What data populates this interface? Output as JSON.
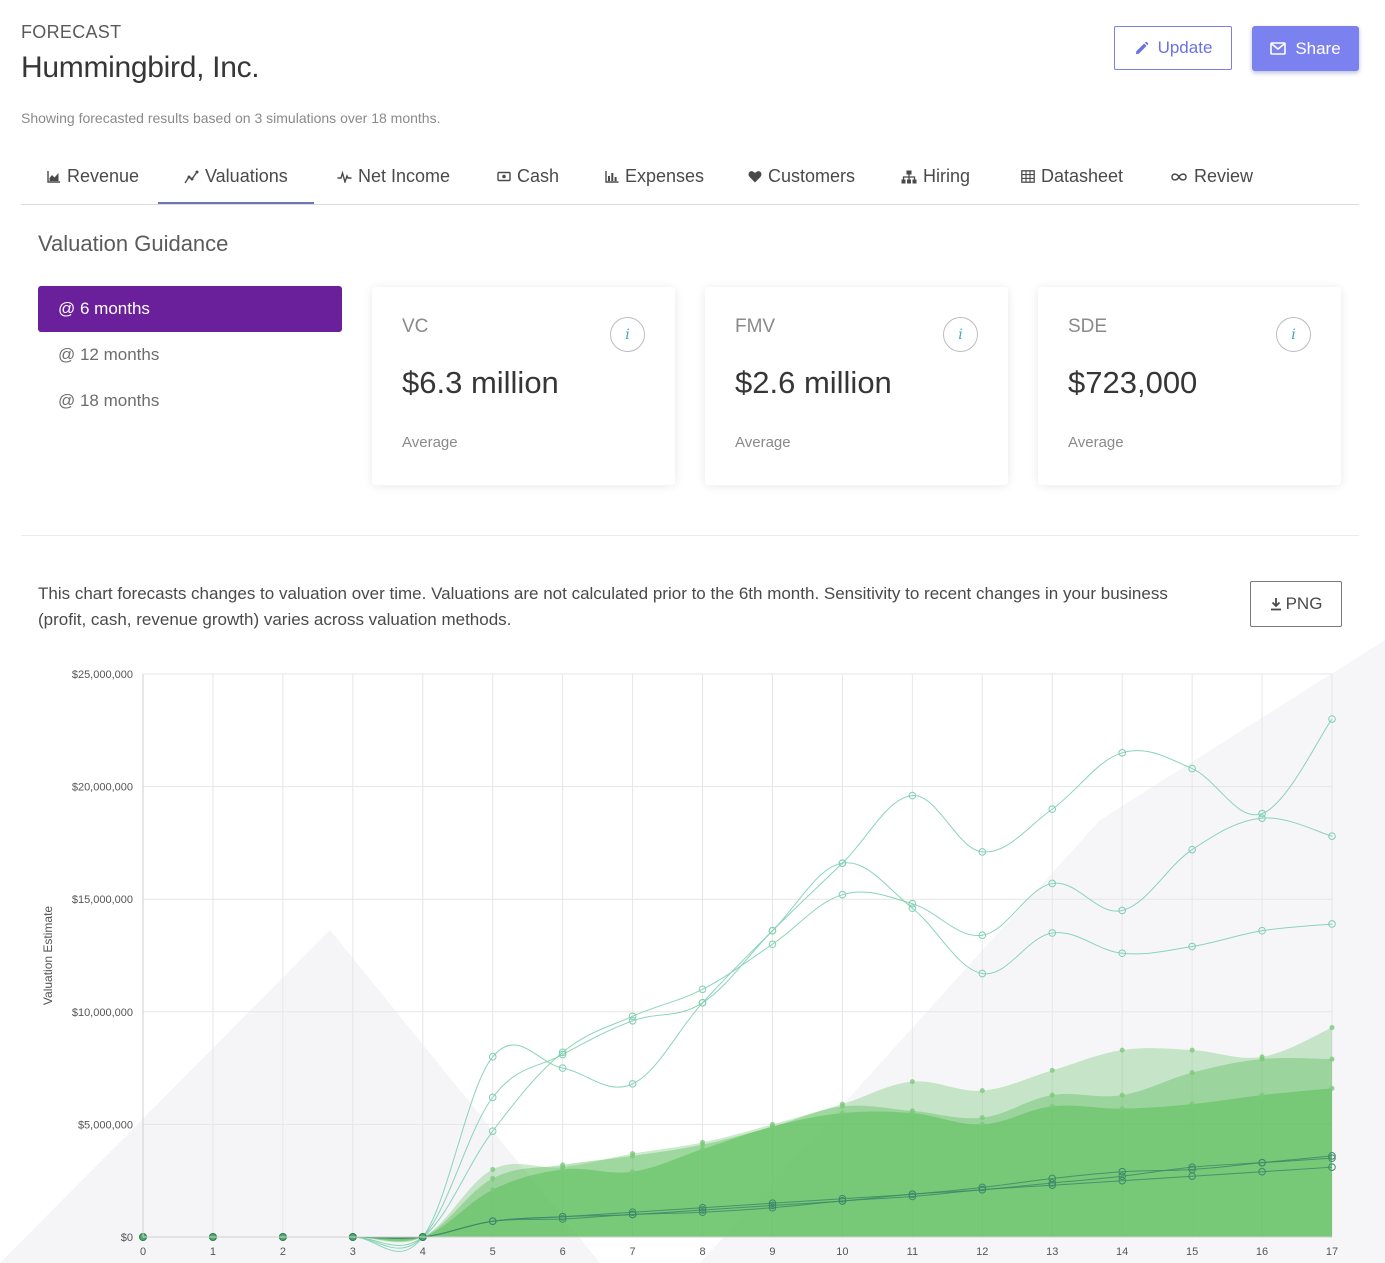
{
  "header": {
    "eyebrow": "FORECAST",
    "company": "Hummingbird, Inc.",
    "subtitle": "Showing forecasted results based on 3 simulations over 18 months."
  },
  "actions": {
    "update_label": "Update",
    "share_label": "Share"
  },
  "tabs": [
    {
      "label": "Revenue",
      "icon": "area-chart-icon"
    },
    {
      "label": "Valuations",
      "icon": "line-chart-icon",
      "active": true
    },
    {
      "label": "Net Income",
      "icon": "heartbeat-icon"
    },
    {
      "label": "Cash",
      "icon": "money-icon"
    },
    {
      "label": "Expenses",
      "icon": "bar-chart-icon"
    },
    {
      "label": "Customers",
      "icon": "heart-icon"
    },
    {
      "label": "Hiring",
      "icon": "sitemap-icon"
    },
    {
      "label": "Datasheet",
      "icon": "table-icon"
    },
    {
      "label": "Review",
      "icon": "infinity-icon"
    }
  ],
  "guidance": {
    "title": "Valuation Guidance",
    "periods": [
      "@ 6 months",
      "@ 12 months",
      "@ 18 months"
    ],
    "active_period": 0,
    "cards": [
      {
        "label": "VC",
        "value": "$6.3 million",
        "footnote": "Average",
        "info": "i"
      },
      {
        "label": "FMV",
        "value": "$2.6 million",
        "footnote": "Average",
        "info": "i"
      },
      {
        "label": "SDE",
        "value": "$723,000",
        "footnote": "Average",
        "info": "i"
      }
    ]
  },
  "chart_section": {
    "description": "This chart forecasts changes to valuation over time. Valuations are not calculated prior to the 6th month. Sensitivity to recent changes in your business (profit, cash, revenue growth) varies across valuation methods.",
    "png_label": "PNG"
  },
  "colors": {
    "accent": "#7b82f0",
    "active_period": "#6a1f9b",
    "tab_underline": "#6b76b9",
    "vc_line": "#7ecfb0",
    "fmv_fill": "#5fbf5f",
    "sde_line": "#3c8a6a"
  },
  "chart_data": {
    "type": "line",
    "ylabel": "Valuation Estimate",
    "xlabel": "",
    "x": [
      0,
      1,
      2,
      3,
      4,
      5,
      6,
      7,
      8,
      9,
      10,
      11,
      12,
      13,
      14,
      15,
      16,
      17
    ],
    "ylim": [
      0,
      25000000
    ],
    "yticks": [
      0,
      5000000,
      10000000,
      15000000,
      20000000,
      25000000
    ],
    "ytick_labels": [
      "$0",
      "$5,000,000",
      "$10,000,000",
      "$15,000,000",
      "$20,000,000",
      "$25,000,000"
    ],
    "grid": true,
    "series": [
      {
        "group": "vc",
        "style": "line",
        "values": [
          0,
          0,
          0,
          0,
          0,
          8000000,
          7500000,
          6800000,
          10400000,
          13600000,
          16600000,
          19600000,
          17100000,
          19000000,
          21500000,
          20800000,
          18800000,
          23000000
        ]
      },
      {
        "group": "vc",
        "style": "line",
        "values": [
          0,
          0,
          0,
          0,
          0,
          6200000,
          8100000,
          9600000,
          10400000,
          13600000,
          16600000,
          14600000,
          11700000,
          13500000,
          12600000,
          12900000,
          13600000,
          13900000
        ]
      },
      {
        "group": "vc",
        "style": "line",
        "values": [
          0,
          0,
          0,
          0,
          0,
          4700000,
          8200000,
          9800000,
          11000000,
          13000000,
          15200000,
          14800000,
          13400000,
          15700000,
          14500000,
          17200000,
          18600000,
          17800000
        ]
      },
      {
        "group": "fmv",
        "style": "area",
        "values": [
          0,
          0,
          0,
          0,
          0,
          3000000,
          3100000,
          3700000,
          4200000,
          5000000,
          5900000,
          6900000,
          6500000,
          7400000,
          8300000,
          8300000,
          8000000,
          9300000
        ]
      },
      {
        "group": "fmv",
        "style": "area",
        "values": [
          0,
          0,
          0,
          0,
          0,
          2600000,
          3200000,
          3600000,
          4100000,
          4900000,
          5800000,
          5600000,
          5300000,
          6300000,
          6300000,
          7300000,
          7900000,
          7900000
        ]
      },
      {
        "group": "fmv",
        "style": "area",
        "values": [
          0,
          0,
          0,
          0,
          0,
          2100000,
          3000000,
          2900000,
          3900000,
          4900000,
          5500000,
          5500000,
          5000000,
          5800000,
          5700000,
          5900000,
          6300000,
          6600000
        ]
      },
      {
        "group": "sde",
        "style": "line",
        "values": [
          0,
          0,
          0,
          0,
          0,
          700000,
          900000,
          1100000,
          1300000,
          1500000,
          1700000,
          1900000,
          2200000,
          2600000,
          2900000,
          3000000,
          3300000,
          3600000
        ]
      },
      {
        "group": "sde",
        "style": "line",
        "values": [
          0,
          0,
          0,
          0,
          0,
          700000,
          900000,
          1000000,
          1200000,
          1400000,
          1600000,
          1900000,
          2100000,
          2400000,
          2700000,
          3100000,
          3300000,
          3500000
        ]
      },
      {
        "group": "sde",
        "style": "line",
        "values": [
          0,
          0,
          0,
          0,
          0,
          700000,
          800000,
          1000000,
          1100000,
          1300000,
          1600000,
          1800000,
          2100000,
          2300000,
          2500000,
          2700000,
          2900000,
          3100000
        ]
      }
    ]
  }
}
